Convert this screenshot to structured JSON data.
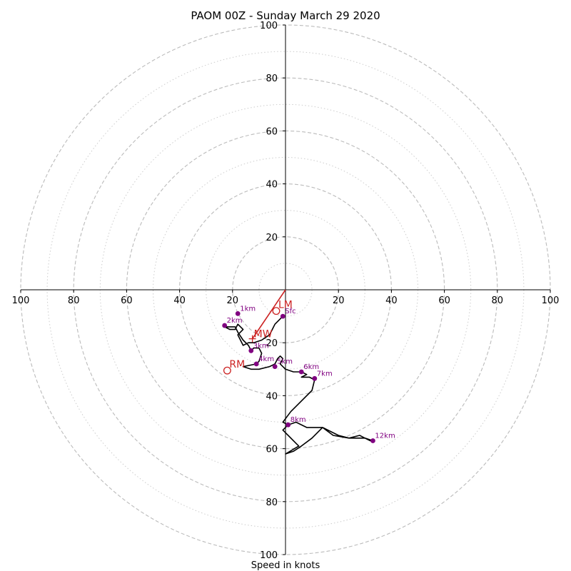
{
  "chart_data": {
    "type": "hodograph",
    "title": "PAOM 00Z - Sunday March 29 2020",
    "xlabel": "Speed in knots",
    "max_speed": 100,
    "rings_major": [
      20,
      40,
      60,
      80,
      100
    ],
    "rings_minor": [
      10,
      30,
      50,
      70,
      90
    ],
    "tick_labels": [
      "20",
      "40",
      "60",
      "80",
      "100"
    ],
    "colors": {
      "trace": "#000000",
      "height_points": "#800080",
      "motion": "#cc2222",
      "grid": "#bbbbbb"
    },
    "trace": [
      [
        -1,
        -10
      ],
      [
        -4,
        -13
      ],
      [
        -6,
        -17
      ],
      [
        -9,
        -19
      ],
      [
        -12,
        -20
      ],
      [
        -14,
        -20
      ],
      [
        -16,
        -21
      ],
      [
        -18,
        -17
      ],
      [
        -16,
        -15
      ],
      [
        -18,
        -13
      ],
      [
        -19,
        -15
      ],
      [
        -21,
        -15
      ],
      [
        -23,
        -14
      ],
      [
        -19,
        -14
      ],
      [
        -18,
        -16
      ],
      [
        -16,
        -19
      ],
      [
        -14,
        -21
      ],
      [
        -13,
        -23
      ],
      [
        -12,
        -22
      ],
      [
        -10,
        -22
      ],
      [
        -9,
        -24
      ],
      [
        -10,
        -27
      ],
      [
        -11,
        -28
      ],
      [
        -16,
        -29
      ],
      [
        -13,
        -30
      ],
      [
        -10,
        -30
      ],
      [
        -6,
        -29
      ],
      [
        -4,
        -28
      ],
      [
        -3,
        -26
      ],
      [
        -2,
        -25
      ],
      [
        -1,
        -26
      ],
      [
        -2,
        -28
      ],
      [
        0,
        -30
      ],
      [
        3,
        -31
      ],
      [
        6,
        -31
      ],
      [
        8,
        -32
      ],
      [
        6,
        -33
      ],
      [
        9,
        -33
      ],
      [
        11,
        -34
      ],
      [
        10,
        -38
      ],
      [
        6,
        -42
      ],
      [
        2,
        -46
      ],
      [
        -1,
        -50
      ],
      [
        1,
        -51
      ],
      [
        4,
        -50
      ],
      [
        8,
        -52
      ],
      [
        14,
        -52
      ],
      [
        20,
        -55
      ],
      [
        24,
        -56
      ],
      [
        28,
        -55
      ],
      [
        30,
        -56
      ],
      [
        32,
        -57
      ],
      [
        33,
        -57
      ],
      [
        30,
        -56
      ],
      [
        24,
        -56
      ],
      [
        18,
        -55
      ],
      [
        14,
        -52
      ],
      [
        10,
        -56
      ],
      [
        6,
        -59
      ],
      [
        3,
        -61
      ],
      [
        0,
        -62
      ],
      [
        5,
        -59
      ],
      [
        4,
        -58
      ],
      [
        1,
        -55
      ],
      [
        -1,
        -53
      ],
      [
        1,
        -51
      ]
    ],
    "height_points": [
      {
        "label": "Sfc",
        "u": -1,
        "v": -10
      },
      {
        "label": "1km",
        "u": -18,
        "v": -9
      },
      {
        "label": "2km",
        "u": -23,
        "v": -13.5
      },
      {
        "label": "3km",
        "u": -13,
        "v": -23
      },
      {
        "label": "4km",
        "u": -11,
        "v": -28
      },
      {
        "label": "5km",
        "u": -4,
        "v": -29
      },
      {
        "label": "6km",
        "u": 6,
        "v": -31
      },
      {
        "label": "7km",
        "u": 11,
        "v": -33.5
      },
      {
        "label": "8km",
        "u": 1,
        "v": -51
      },
      {
        "label": "12km",
        "u": 33,
        "v": -57
      }
    ],
    "storm_motion": [
      {
        "label": "LM",
        "u": -3.5,
        "v": -8
      },
      {
        "label": "RM",
        "u": -22,
        "v": -30.5
      },
      {
        "label": "MW",
        "u": -12.5,
        "v": -18.5
      }
    ],
    "shear_vector": {
      "from": [
        0,
        0
      ],
      "to": [
        -12.5,
        -18.5
      ]
    }
  }
}
